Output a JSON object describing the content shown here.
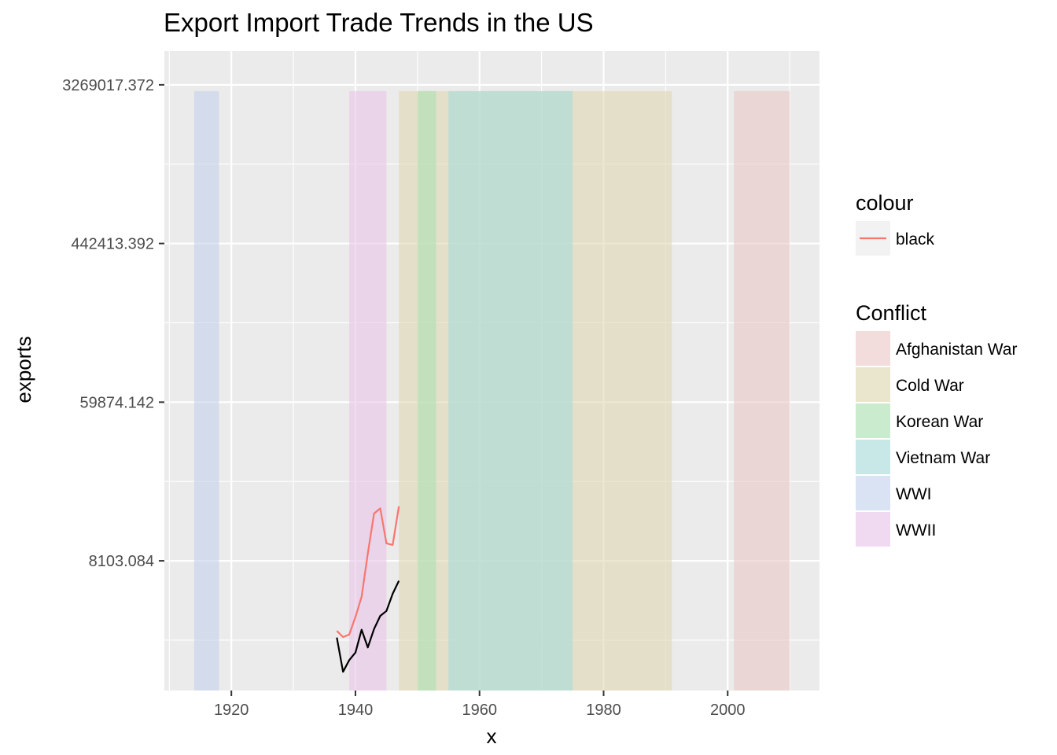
{
  "chart_data": {
    "type": "line",
    "title": "Export Import Trade Trends in the US",
    "xlabel": "x",
    "ylabel": "exports",
    "xlim": [
      1909.2,
      2014.8
    ],
    "xticks": [
      1920,
      1940,
      1960,
      1980,
      2000
    ],
    "xtick_labels": [
      "1920",
      "1940",
      "1960",
      "1980",
      "2000"
    ],
    "yscale": "log",
    "ylim": [
      1580,
      5000000
    ],
    "yticks": [
      8103.084,
      59874.142,
      442413.392,
      3269017.372
    ],
    "ytick_labels": [
      "8103.084",
      "59874.142",
      "442413.392",
      "3269017.372"
    ],
    "grid": true,
    "conflicts": [
      {
        "name": "WWI",
        "start": 1914,
        "end": 1918,
        "color": "#c6d4ee"
      },
      {
        "name": "WWII",
        "start": 1939,
        "end": 1945,
        "color": "#e8c6ea"
      },
      {
        "name": "Cold War",
        "start": 1947,
        "end": 1991,
        "color": "#dfd9b3"
      },
      {
        "name": "Korean War",
        "start": 1950,
        "end": 1953,
        "color": "#aee0b4"
      },
      {
        "name": "Vietnam War",
        "start": 1955,
        "end": 1975,
        "color": "#a9dbd9"
      },
      {
        "name": "Afghanistan War",
        "start": 2001,
        "end": 2010,
        "color": "#ecc9c9"
      }
    ],
    "series": [
      {
        "name": "black",
        "color": "#f8766d",
        "x": [
          1937,
          1938,
          1939,
          1940,
          1941,
          1942,
          1943,
          1944,
          1945,
          1946,
          1947
        ],
        "y": [
          3350,
          3100,
          3200,
          4000,
          5150,
          8900,
          14700,
          15700,
          10100,
          9900,
          16100
        ]
      },
      {
        "name": "",
        "color": "#000000",
        "x": [
          1937,
          1938,
          1939,
          1940,
          1941,
          1942,
          1943,
          1944,
          1945,
          1946,
          1947
        ],
        "y": [
          3080,
          2000,
          2320,
          2550,
          3400,
          2720,
          3430,
          4050,
          4310,
          5350,
          6300
        ]
      }
    ],
    "legend": {
      "position": "right",
      "colour_title": "colour",
      "colour_entries": [
        {
          "label": "black",
          "color": "#f8766d"
        }
      ],
      "conflict_title": "Conflict",
      "conflict_entries": [
        {
          "label": "Afghanistan War",
          "color": "#ecc9c9"
        },
        {
          "label": "Cold War",
          "color": "#dfd9b3"
        },
        {
          "label": "Korean War",
          "color": "#aee0b4"
        },
        {
          "label": "Vietnam War",
          "color": "#a9dbd9"
        },
        {
          "label": "WWI",
          "color": "#c6d4ee"
        },
        {
          "label": "WWII",
          "color": "#e8c6ea"
        }
      ]
    }
  }
}
